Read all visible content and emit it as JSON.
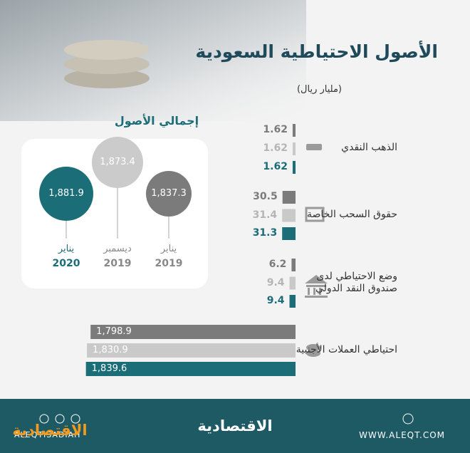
{
  "header": {
    "title": "الأصول الاحتياطية السعودية",
    "unit": "(مليار ريال)"
  },
  "chart_data": [
    {
      "type": "bubble",
      "title": "إجمالي الأصول",
      "categories": [
        "يناير",
        "ديسمبر",
        "يناير"
      ],
      "years": [
        "2020",
        "2019",
        "2019"
      ],
      "values": [
        1881.9,
        1873.4,
        1837.3
      ],
      "value_labels": [
        "1,881.9",
        "1,873.4",
        "1,837.3"
      ],
      "colors": [
        "#1b6d78",
        "#cbcbcb",
        "#7b7b7b"
      ]
    },
    {
      "type": "bar",
      "orientation": "horizontal",
      "categories": [
        "الذهب النقدي",
        "حقوق السحب الخاصة",
        "وضع الاحتياطي لدى\nصندوق النقد الدولي",
        "احتياطي العملات الأجنبية"
      ],
      "series": [
        {
          "color": "#7b7b7b",
          "values": [
            1.62,
            30.5,
            6.2,
            1798.9
          ],
          "value_labels": [
            "1.62",
            "30.5",
            "6.2",
            "1,798.9"
          ]
        },
        {
          "color": "#c9c9c9",
          "values": [
            1.62,
            31.4,
            9.4,
            1830.9
          ],
          "value_labels": [
            "1.62",
            "31.4",
            "9.4",
            "1,830.9"
          ]
        },
        {
          "color": "#1b6d78",
          "values": [
            1.62,
            31.3,
            9.4,
            1839.6
          ],
          "value_labels": [
            "1.62",
            "31.3",
            "9.4",
            "1,839.6"
          ]
        }
      ]
    }
  ],
  "footer": {
    "logo": "الاقتصادية",
    "url": "WWW.ALEQT.COM",
    "handle": "ALEQTISADIAH",
    "logo_small": "الاقتصادية"
  }
}
